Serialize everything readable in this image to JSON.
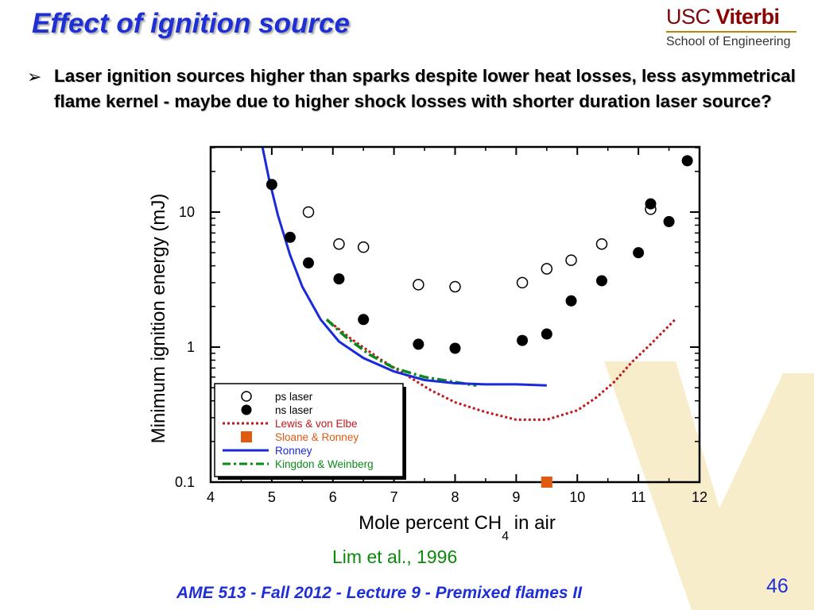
{
  "slide": {
    "title": "Effect of ignition source",
    "bullet_marker": "➢",
    "bullet": "Laser ignition sources higher than sparks despite lower heat losses, less asymmetrical flame kernel - maybe due to higher shock losses with shorter duration laser source?",
    "citation": "Lim et al., 1996",
    "footer": "AME 513 - Fall 2012 - Lecture 9 - Premixed flames II",
    "page_number": "46",
    "logo_usc": "USC",
    "logo_viterbi": "Viterbi",
    "logo_school": "School of Engineering"
  },
  "colors": {
    "title": "#1f2fd6",
    "lewis": "#c0181c",
    "sloane": "#e05a10",
    "ronney": "#1a2ad8",
    "kingdon": "#0a8a1a",
    "citation": "#0a8a0a",
    "watermark": "#f6e7b8"
  },
  "chart_data": {
    "type": "scatter",
    "xlabel": "Mole percent CH",
    "xlabel_sub": "4",
    "xlabel_suffix": " in air",
    "ylabel": "Minimum ignition energy (mJ)",
    "xlim": [
      4,
      12
    ],
    "ylim": [
      0.1,
      30
    ],
    "yscale": "log",
    "x_ticks": [
      "4",
      "5",
      "6",
      "7",
      "8",
      "9",
      "10",
      "11",
      "12"
    ],
    "y_ticks": [
      {
        "value": 0.1,
        "label": "0.1"
      },
      {
        "value": 1,
        "label": "1"
      },
      {
        "value": 10,
        "label": "10"
      }
    ],
    "legend_position": "bottom-left",
    "series": [
      {
        "name": "ps laser",
        "kind": "open-circle",
        "x": [
          5.6,
          6.1,
          6.5,
          7.4,
          8.0,
          9.1,
          9.5,
          9.9,
          10.4,
          11.2
        ],
        "y": [
          10,
          5.8,
          5.5,
          2.9,
          2.8,
          3.0,
          3.8,
          4.4,
          5.8,
          10.5
        ]
      },
      {
        "name": "ns laser",
        "kind": "filled-circle",
        "x": [
          5.0,
          5.3,
          5.6,
          6.1,
          6.5,
          7.4,
          8.0,
          9.1,
          9.5,
          9.9,
          10.4,
          11.0,
          11.2,
          11.5,
          11.8
        ],
        "y": [
          16,
          6.5,
          4.2,
          3.2,
          1.6,
          1.05,
          0.98,
          1.12,
          1.25,
          2.2,
          3.1,
          5.0,
          11.5,
          8.5,
          24
        ]
      },
      {
        "name": "Lewis & von Elbe",
        "kind": "dotted-line",
        "x": [
          5.9,
          6.3,
          6.8,
          7.2,
          7.6,
          8.0,
          8.5,
          9.0,
          9.5,
          10.0,
          10.3,
          10.6,
          10.9,
          11.2,
          11.6
        ],
        "y": [
          1.6,
          1.15,
          0.8,
          0.62,
          0.48,
          0.39,
          0.33,
          0.29,
          0.29,
          0.34,
          0.42,
          0.55,
          0.78,
          1.05,
          1.6
        ]
      },
      {
        "name": "Sloane & Ronney",
        "kind": "square",
        "x": [
          9.5
        ],
        "y": [
          0.1
        ]
      },
      {
        "name": "Ronney",
        "kind": "solid-line",
        "x": [
          4.85,
          4.95,
          5.1,
          5.3,
          5.5,
          5.8,
          6.1,
          6.5,
          7.0,
          7.5,
          8.0,
          8.5,
          9.0,
          9.5
        ],
        "y": [
          30,
          18,
          9.5,
          4.8,
          2.8,
          1.6,
          1.1,
          0.83,
          0.66,
          0.57,
          0.54,
          0.53,
          0.53,
          0.52
        ]
      },
      {
        "name": "Kingdon & Weinberg",
        "kind": "dash-dot-line",
        "x": [
          5.9,
          6.2,
          6.6,
          7.0,
          7.5,
          8.0,
          8.35
        ],
        "y": [
          1.6,
          1.2,
          0.88,
          0.7,
          0.6,
          0.55,
          0.52
        ]
      }
    ]
  }
}
